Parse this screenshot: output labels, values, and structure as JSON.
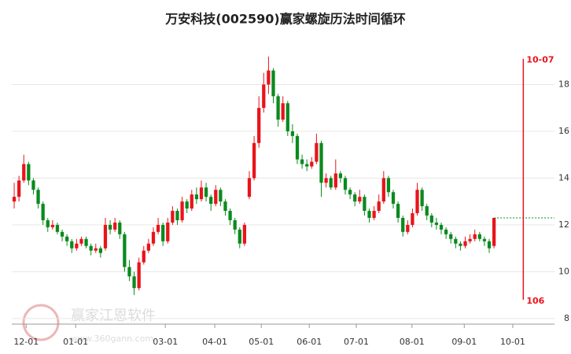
{
  "chart_data": {
    "type": "candlestick",
    "title": "万安科技(002590)赢家螺旋历法时间循环",
    "up_color": "#e8141b",
    "down_color": "#0a8a1e",
    "xlim": [
      -0.5,
      112.6
    ],
    "xticks": [
      {
        "value": 2.5,
        "label": "12-01"
      },
      {
        "value": 12.8,
        "label": "01-01"
      },
      {
        "value": 31.5,
        "label": "03-01"
      },
      {
        "value": 41.8,
        "label": "04-01"
      },
      {
        "value": 51.5,
        "label": "05-01"
      },
      {
        "value": 61.5,
        "label": "06-01"
      },
      {
        "value": 71.3,
        "label": "07-01"
      },
      {
        "value": 82.9,
        "label": "08-01"
      },
      {
        "value": 93.8,
        "label": "09-01"
      },
      {
        "value": 103.9,
        "label": "10-01"
      }
    ],
    "ylim": [
      7.76,
      20.1
    ],
    "yticks": [
      8,
      10,
      12,
      14,
      16,
      18
    ],
    "grid": true,
    "ohlc": [
      [
        13.0,
        13.2,
        13.8,
        12.7
      ],
      [
        13.2,
        13.9,
        14.1,
        13.0
      ],
      [
        13.9,
        14.6,
        15.0,
        13.8
      ],
      [
        14.6,
        13.9,
        14.7,
        13.7
      ],
      [
        13.9,
        13.5,
        14.0,
        13.3
      ],
      [
        13.5,
        12.9,
        13.6,
        12.7
      ],
      [
        12.9,
        12.2,
        13.0,
        12.0
      ],
      [
        12.2,
        11.9,
        12.3,
        11.7
      ],
      [
        11.9,
        12.0,
        12.2,
        11.8
      ],
      [
        12.0,
        11.7,
        12.1,
        11.6
      ],
      [
        11.7,
        11.5,
        11.8,
        11.3
      ],
      [
        11.5,
        11.3,
        11.6,
        11.1
      ],
      [
        11.3,
        11.0,
        11.4,
        10.8
      ],
      [
        11.0,
        11.2,
        11.4,
        10.9
      ],
      [
        11.2,
        11.4,
        11.5,
        11.1
      ],
      [
        11.4,
        11.1,
        11.5,
        11.0
      ],
      [
        11.1,
        10.9,
        11.2,
        10.7
      ],
      [
        10.9,
        11.0,
        11.2,
        10.8
      ],
      [
        11.0,
        10.8,
        11.1,
        10.6
      ],
      [
        11.0,
        12.0,
        12.3,
        10.9
      ],
      [
        12.0,
        11.8,
        12.2,
        11.6
      ],
      [
        11.8,
        12.1,
        12.3,
        11.7
      ],
      [
        12.1,
        11.6,
        12.2,
        11.4
      ],
      [
        11.6,
        10.2,
        11.7,
        10.0
      ],
      [
        10.2,
        9.8,
        10.5,
        9.6
      ],
      [
        9.8,
        9.3,
        10.0,
        9.0
      ],
      [
        9.3,
        10.4,
        10.6,
        9.2
      ],
      [
        10.4,
        10.9,
        11.1,
        10.3
      ],
      [
        10.9,
        11.2,
        11.4,
        10.8
      ],
      [
        11.2,
        11.7,
        11.9,
        11.1
      ],
      [
        11.7,
        12.0,
        12.3,
        11.6
      ],
      [
        12.0,
        11.3,
        12.1,
        11.1
      ],
      [
        11.3,
        12.1,
        12.3,
        11.2
      ],
      [
        12.1,
        12.6,
        12.8,
        12.0
      ],
      [
        12.6,
        12.2,
        12.7,
        12.0
      ],
      [
        12.2,
        13.0,
        13.2,
        12.1
      ],
      [
        13.0,
        12.7,
        13.1,
        12.5
      ],
      [
        12.7,
        13.3,
        13.5,
        12.6
      ],
      [
        13.3,
        13.1,
        13.6,
        12.9
      ],
      [
        13.1,
        13.6,
        13.9,
        13.0
      ],
      [
        13.6,
        13.2,
        13.8,
        13.0
      ],
      [
        13.2,
        12.9,
        13.3,
        12.6
      ],
      [
        12.9,
        13.5,
        13.7,
        12.8
      ],
      [
        13.5,
        13.0,
        13.6,
        12.8
      ],
      [
        13.0,
        12.6,
        13.1,
        12.4
      ],
      [
        12.6,
        12.2,
        12.7,
        12.0
      ],
      [
        12.2,
        11.8,
        12.3,
        11.6
      ],
      [
        11.8,
        11.2,
        11.9,
        11.0
      ],
      [
        11.2,
        12.0,
        12.1,
        11.1
      ],
      [
        13.2,
        14.0,
        14.3,
        13.1
      ],
      [
        14.0,
        15.5,
        15.8,
        13.9
      ],
      [
        15.5,
        17.0,
        17.5,
        15.3
      ],
      [
        17.0,
        18.0,
        18.5,
        16.8
      ],
      [
        18.0,
        18.6,
        19.2,
        17.6
      ],
      [
        18.6,
        17.5,
        18.7,
        17.2
      ],
      [
        17.5,
        16.5,
        17.6,
        16.2
      ],
      [
        16.5,
        17.2,
        17.5,
        16.4
      ],
      [
        17.2,
        16.0,
        17.3,
        15.8
      ],
      [
        16.0,
        15.8,
        16.3,
        15.5
      ],
      [
        15.8,
        14.8,
        15.9,
        14.6
      ],
      [
        14.8,
        14.6,
        15.0,
        14.4
      ],
      [
        14.6,
        14.5,
        14.8,
        14.3
      ],
      [
        14.5,
        14.7,
        14.9,
        14.4
      ],
      [
        14.7,
        15.5,
        15.9,
        14.6
      ],
      [
        15.5,
        13.8,
        15.6,
        13.2
      ],
      [
        13.8,
        14.0,
        14.2,
        13.6
      ],
      [
        14.0,
        13.6,
        14.1,
        13.5
      ],
      [
        13.6,
        14.2,
        14.8,
        13.5
      ],
      [
        14.2,
        14.0,
        14.3,
        13.8
      ],
      [
        14.0,
        13.5,
        14.1,
        13.3
      ],
      [
        13.5,
        13.3,
        13.6,
        13.1
      ],
      [
        13.3,
        13.0,
        13.4,
        12.8
      ],
      [
        13.0,
        13.2,
        13.5,
        12.9
      ],
      [
        13.2,
        12.6,
        13.3,
        12.4
      ],
      [
        12.6,
        12.3,
        12.7,
        12.1
      ],
      [
        12.3,
        12.6,
        12.8,
        12.2
      ],
      [
        12.6,
        13.0,
        13.3,
        12.5
      ],
      [
        13.0,
        14.0,
        14.3,
        12.9
      ],
      [
        14.0,
        13.4,
        14.1,
        13.2
      ],
      [
        13.4,
        12.9,
        13.5,
        12.7
      ],
      [
        12.9,
        12.3,
        13.0,
        12.1
      ],
      [
        12.3,
        11.7,
        12.4,
        11.5
      ],
      [
        11.7,
        12.0,
        12.2,
        11.6
      ],
      [
        12.0,
        12.5,
        12.7,
        11.9
      ],
      [
        12.5,
        13.5,
        13.8,
        12.4
      ],
      [
        13.5,
        12.8,
        13.6,
        12.6
      ],
      [
        12.8,
        12.4,
        12.9,
        12.2
      ],
      [
        12.4,
        12.1,
        12.5,
        11.9
      ],
      [
        12.1,
        12.0,
        12.3,
        11.8
      ],
      [
        12.0,
        11.8,
        12.1,
        11.6
      ],
      [
        11.8,
        11.6,
        11.9,
        11.4
      ],
      [
        11.6,
        11.4,
        11.7,
        11.2
      ],
      [
        11.4,
        11.2,
        11.5,
        11.0
      ],
      [
        11.2,
        11.1,
        11.3,
        10.9
      ],
      [
        11.1,
        11.3,
        11.5,
        11.0
      ],
      [
        11.3,
        11.4,
        11.6,
        11.2
      ],
      [
        11.4,
        11.6,
        11.8,
        11.3
      ],
      [
        11.6,
        11.4,
        11.7,
        11.3
      ],
      [
        11.4,
        11.3,
        11.5,
        11.1
      ],
      [
        11.3,
        11.0,
        11.4,
        10.8
      ],
      [
        11.1,
        12.3,
        12.3,
        11.0
      ]
    ],
    "reference_line": {
      "value": 12.3,
      "color": "#0a8a1e"
    },
    "time_line": {
      "x": 106.1,
      "top": 19.1,
      "bottom": 8.8,
      "label": "10-07",
      "bottom_label": "106",
      "color": "#e8141b"
    },
    "watermark": {
      "text": "赢家江恩软件",
      "url": "www.360gann.com"
    }
  }
}
